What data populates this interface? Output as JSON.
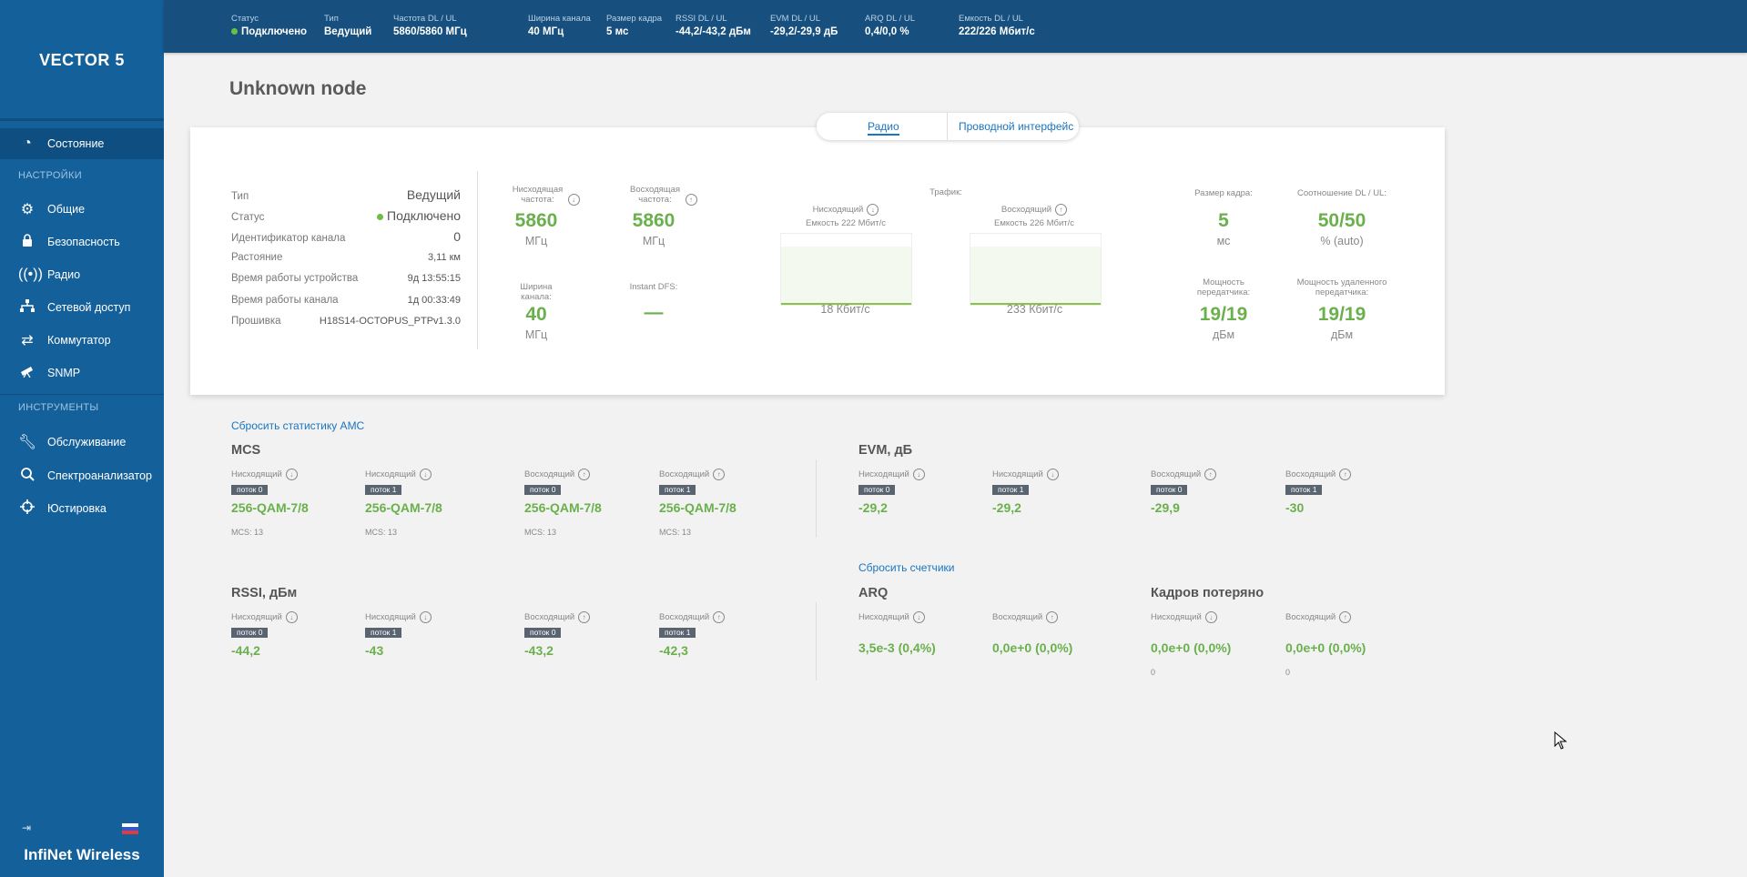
{
  "sidebar": {
    "logo": "VECTOR 5",
    "items": [
      {
        "label": "Состояние",
        "icon": "dashboard-icon"
      },
      {
        "label": "Общие",
        "icon": "gear-icon"
      },
      {
        "label": "Безопасность",
        "icon": "lock-icon"
      },
      {
        "label": "Радио",
        "icon": "radio-icon"
      },
      {
        "label": "Сетевой доступ",
        "icon": "network-icon"
      },
      {
        "label": "Коммутатор",
        "icon": "switch-icon"
      },
      {
        "label": "SNMP",
        "icon": "telescope-icon"
      },
      {
        "label": "Обслуживание",
        "icon": "wrench-icon"
      },
      {
        "label": "Спектроанализатор",
        "icon": "spectrum-icon"
      },
      {
        "label": "Юстировка",
        "icon": "crosshair-icon"
      }
    ],
    "sections": {
      "settings": "НАСТРОЙКИ",
      "tools": "ИНСТРУМЕНТЫ"
    },
    "brand": "InfiNet Wireless"
  },
  "topbar": {
    "status": {
      "label": "Статус",
      "value": "Подключено"
    },
    "type": {
      "label": "Тип",
      "value": "Ведущий"
    },
    "freq": {
      "label": "Частота DL / UL",
      "value": "5860/5860 МГц"
    },
    "width": {
      "label": "Ширина канала",
      "value": "40 МГц"
    },
    "frame": {
      "label": "Размер кадра",
      "value": "5 мс"
    },
    "rssi": {
      "label": "RSSI DL / UL",
      "value": "-44,2/-43,2 дБм"
    },
    "evm": {
      "label": "EVM DL / UL",
      "value": "-29,2/-29,9 дБ"
    },
    "arq": {
      "label": "ARQ DL / UL",
      "value": "0,4/0,0 %"
    },
    "capacity": {
      "label": "Емкость DL / UL",
      "value": "222/226 Мбит/с"
    }
  },
  "page_title": "Unknown node",
  "tabs": {
    "radio": "Радио",
    "wired": "Проводной интерфейс"
  },
  "info": [
    {
      "label": "Тип",
      "value": "Ведущий"
    },
    {
      "label": "Статус",
      "value": "Подключено"
    },
    {
      "label": "Идентификатор канала",
      "value": "0"
    },
    {
      "label": "Растояние",
      "value": "3,11 км"
    },
    {
      "label": "Время работы устройства",
      "value": "9д 13:55:15"
    },
    {
      "label": "Время работы канала",
      "value": "1д 00:33:49"
    },
    {
      "label": "Прошивка",
      "value": "H18S14-OCTOPUS_PTPv1.3.0"
    }
  ],
  "metrics": {
    "dl_freq": {
      "label": "Нисходящая частота:",
      "value": "5860",
      "unit": "МГц"
    },
    "ul_freq": {
      "label": "Восходящая частота:",
      "value": "5860",
      "unit": "МГц"
    },
    "width": {
      "label": "Ширина канала:",
      "value": "40",
      "unit": "МГц"
    },
    "dfs": {
      "label": "Instant DFS:",
      "value": "—"
    },
    "traffic_label": "Трафик:",
    "traffic_dl": {
      "label": "Нисходящий",
      "capacity": "Емкость 222 Мбит/с",
      "value": "18 Кбит/с"
    },
    "traffic_ul": {
      "label": "Восходящий",
      "capacity": "Емкость 226 Мбит/с",
      "value": "233 Кбит/с"
    },
    "frame": {
      "label": "Размер кадра:",
      "value": "5",
      "unit": "мс"
    },
    "ratio": {
      "label": "Соотношение DL / UL:",
      "value": "50/50",
      "unit": "% (auto)"
    },
    "tx_power": {
      "label": "Мощность передатчика:",
      "value": "19/19",
      "unit": "дБм"
    },
    "remote_power": {
      "label": "Мощность удаленного передатчика:",
      "value": "19/19",
      "unit": "дБм"
    }
  },
  "reset_amc": "Сбросить статистику AMC",
  "reset_counters": "Сбросить счетчики",
  "mcs": {
    "title": "MCS",
    "cells": [
      {
        "dir": "Нисходящий",
        "stream": "поток 0",
        "value": "256-QAM-7/8",
        "sub": "MCS: 13"
      },
      {
        "dir": "Нисходящий",
        "stream": "поток 1",
        "value": "256-QAM-7/8",
        "sub": "MCS: 13"
      },
      {
        "dir": "Восходящий",
        "stream": "поток 0",
        "value": "256-QAM-7/8",
        "sub": "MCS: 13"
      },
      {
        "dir": "Восходящий",
        "stream": "поток 1",
        "value": "256-QAM-7/8",
        "sub": "MCS: 13"
      }
    ]
  },
  "evm": {
    "title": "EVM, дБ",
    "cells": [
      {
        "dir": "Нисходящий",
        "stream": "поток 0",
        "value": "-29,2"
      },
      {
        "dir": "Нисходящий",
        "stream": "поток 1",
        "value": "-29,2"
      },
      {
        "dir": "Восходящий",
        "stream": "поток 0",
        "value": "-29,9"
      },
      {
        "dir": "Восходящий",
        "stream": "поток 1",
        "value": "-30"
      }
    ]
  },
  "rssi": {
    "title": "RSSI, дБм",
    "cells": [
      {
        "dir": "Нисходящий",
        "stream": "поток 0",
        "value": "-44,2"
      },
      {
        "dir": "Нисходящий",
        "stream": "поток 1",
        "value": "-43"
      },
      {
        "dir": "Восходящий",
        "stream": "поток 0",
        "value": "-43,2"
      },
      {
        "dir": "Восходящий",
        "stream": "поток 1",
        "value": "-42,3"
      }
    ]
  },
  "arq": {
    "title": "ARQ",
    "cells": [
      {
        "dir": "Нисходящий",
        "value": "3,5e-3 (0,4%)"
      },
      {
        "dir": "Восходящий",
        "value": "0,0e+0 (0,0%)"
      }
    ]
  },
  "lost": {
    "title": "Кадров потеряно",
    "cells": [
      {
        "dir": "Нисходящий",
        "value": "0,0e+0 (0,0%)",
        "sub": "0"
      },
      {
        "dir": "Восходящий",
        "value": "0,0e+0 (0,0%)",
        "sub": "0"
      }
    ]
  },
  "colors": {
    "sidebar": "#14609a",
    "topbar": "#17507e",
    "accent_green": "#6ab04c",
    "link": "#1a75c0"
  }
}
